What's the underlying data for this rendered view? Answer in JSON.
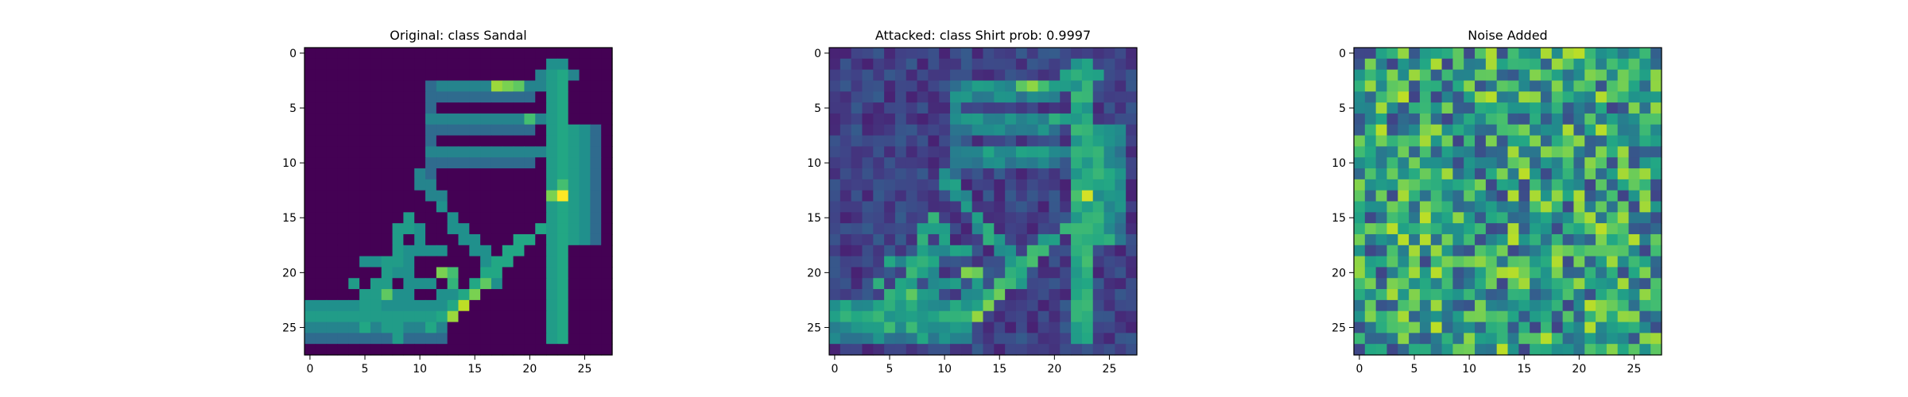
{
  "chart_data": [
    {
      "type": "heatmap",
      "title": "Original: class Sandal",
      "colormap": "viridis",
      "grid": false,
      "x_ticks": [
        0,
        5,
        10,
        15,
        20,
        25
      ],
      "y_ticks": [
        0,
        5,
        10,
        15,
        20,
        25
      ],
      "xlim": [
        -0.5,
        27.5
      ],
      "ylim": [
        27.5,
        -0.5
      ],
      "shape": [
        28,
        28
      ]
    },
    {
      "type": "heatmap",
      "title": "Attacked: class Shirt prob: 0.9997",
      "colormap": "viridis",
      "grid": false,
      "x_ticks": [
        0,
        5,
        10,
        15,
        20,
        25
      ],
      "y_ticks": [
        0,
        5,
        10,
        15,
        20,
        25
      ],
      "xlim": [
        -0.5,
        27.5
      ],
      "ylim": [
        27.5,
        -0.5
      ],
      "shape": [
        28,
        28
      ]
    },
    {
      "type": "heatmap",
      "title": "Noise Added",
      "colormap": "viridis",
      "grid": false,
      "x_ticks": [
        0,
        5,
        10,
        15,
        20,
        25
      ],
      "y_ticks": [
        0,
        5,
        10,
        15,
        20,
        25
      ],
      "xlim": [
        -0.5,
        27.5
      ],
      "ylim": [
        27.5,
        -0.5
      ],
      "shape": [
        28,
        28
      ]
    }
  ]
}
